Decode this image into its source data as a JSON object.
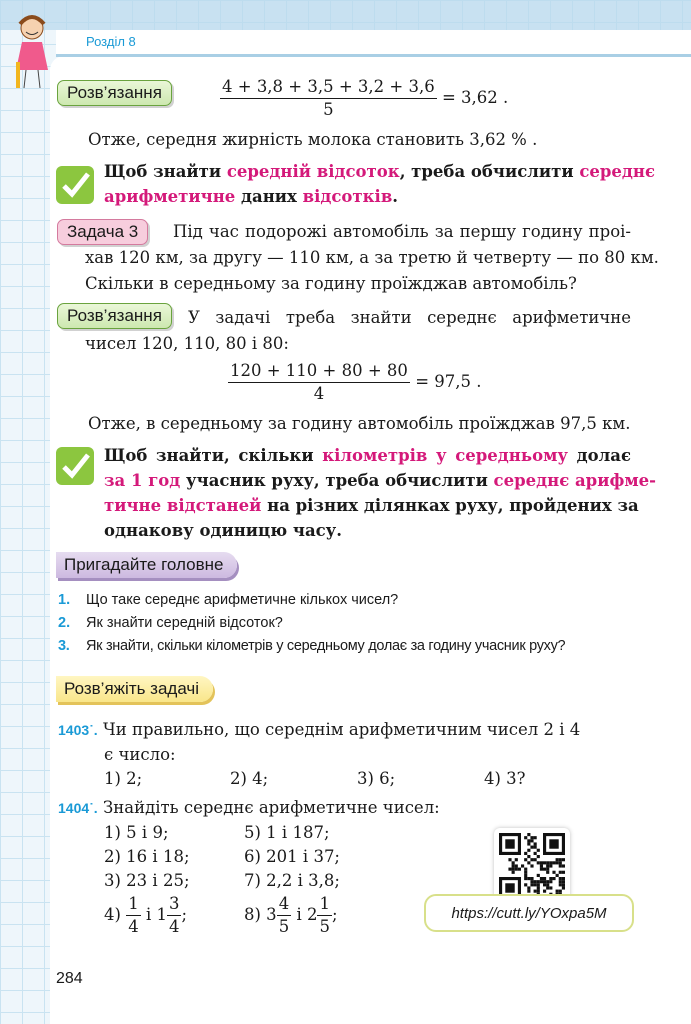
{
  "header": {
    "section": "Розділ 8"
  },
  "solution1": {
    "badge": "Розв’язання",
    "numerator": "4 + 3,8 + 3,5 + 3,2 + 3,6",
    "denominator": "5",
    "result": "= 3,62 .",
    "conclusion": "Отже, середня жирність молока становить 3,62 % ."
  },
  "rule1": {
    "lines": [
      [
        {
          "t": "Щоб знайти "
        },
        {
          "t": "середній відсоток",
          "c": "p"
        },
        {
          "t": ", треба обчислити "
        },
        {
          "t": "середнє",
          "c": "p"
        }
      ],
      [
        {
          "t": "арифметичне",
          "c": "p"
        },
        {
          "t": " даних "
        },
        {
          "t": "відсотків",
          "c": "p"
        },
        {
          "t": "."
        }
      ]
    ]
  },
  "task3": {
    "badge": "Задача 3",
    "lines": [
      "Під час подорожі автомобіль за першу годину проі-",
      "хав 120 км, за другу — 110 км, а за третю й четверту — по 80 км.",
      "Скільки в середньому за годину проїжджав автомобіль?"
    ]
  },
  "solution2": {
    "badge": "Розв’язання",
    "lines": [
      "У задачі треба знайти середнє арифметичне",
      "чисел 120, 110, 80 і 80:"
    ],
    "numerator": "120 + 110 + 80 + 80",
    "denominator": "4",
    "result": "= 97,5 .",
    "conclusion": "Отже, в середньому за годину автомобіль проїжджав 97,5 км."
  },
  "rule2": {
    "lines": [
      [
        {
          "t": "Щоб знайти, скільки "
        },
        {
          "t": "кілометрів у середньому",
          "c": "p"
        },
        {
          "t": " долає"
        }
      ],
      [
        {
          "t": "за 1 год",
          "c": "p"
        },
        {
          "t": " учасник руху, треба обчислити "
        },
        {
          "t": "середнє арифме-",
          "c": "p"
        }
      ],
      [
        {
          "t": "тичне відстаней",
          "c": "p"
        },
        {
          "t": " на різних ділянках руху, пройдених за"
        }
      ],
      [
        {
          "t": "однакову одиницю часу."
        }
      ]
    ]
  },
  "recall": {
    "title": "Пригадайте головне",
    "items": [
      {
        "num": "1.",
        "text": "Що таке середнє арифметичне кількох чисел?"
      },
      {
        "num": "2.",
        "text": "Як знайти середній відсоток?"
      },
      {
        "num": "3.",
        "text": "Як знайти, скільки кілометрів у середньому долає за годину учасник руху?"
      }
    ]
  },
  "solve": {
    "title": "Розв’яжіть задачі"
  },
  "ex1403": {
    "num": "1403˙.",
    "line1": "Чи правильно, що середнім арифметичним чисел 2 і 4",
    "line2": "є число:",
    "options": [
      "1) 2;",
      "2) 4;",
      "3) 6;",
      "4) 3?"
    ]
  },
  "ex1404": {
    "num": "1404˙.",
    "text": "Знайдіть середнє арифметичне чисел:",
    "items": [
      "1) 5 і 9;",
      "5) 1 і 187;",
      "2) 16 і 18;",
      "6) 201 і 37;",
      "3) 23 і 25;",
      "7) 2,2 і 3,8;"
    ],
    "item4": {
      "label": "4)",
      "a_num": "1",
      "a_den": "4",
      "mid": "і 1",
      "b_num": "3",
      "b_den": "4",
      "end": ";"
    },
    "item8": {
      "label": "8) 3",
      "a_num": "4",
      "a_den": "5",
      "mid": "і 2",
      "b_num": "1",
      "b_den": "5",
      "end": ";"
    }
  },
  "qr": {
    "link": "https://cutt.ly/YOxpa5M"
  },
  "page_number": "284",
  "colors": {
    "accent_pink": "#d4197a",
    "number_blue": "#1a9ad6",
    "check_green": "#8cc63f"
  }
}
